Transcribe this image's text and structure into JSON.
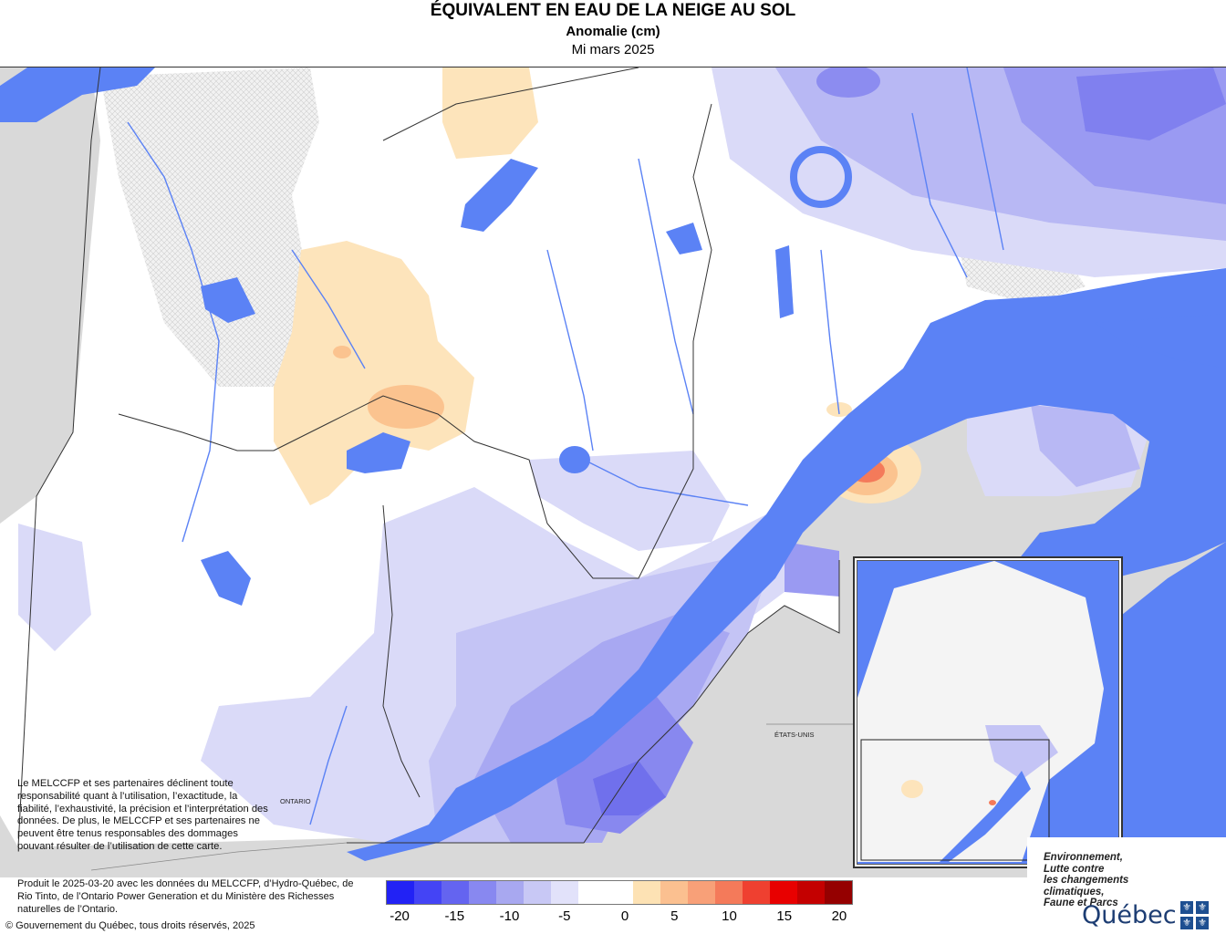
{
  "title": {
    "main": "ÉQUIVALENT EN EAU DE LA NEIGE AU SOL",
    "sub": "Anomalie (cm)",
    "period": "Mi mars 2025"
  },
  "labels": {
    "ontario": "ONTARIO",
    "etats_unis": "ÉTATS-UNIS"
  },
  "disclaimer": "Le MELCCFP et ses partenaires déclinent toute responsabilité quant à l’utilisation, l’exactitude, la fiabilité, l’exhaustivité, la précision et l’interprétation des données. De plus, le MELCCFP et ses partenaires ne peuvent être tenus responsables des dommages pouvant résulter de l’utilisation de cette carte.",
  "credits": "Produit le 2025-03-20 avec les données du MELCCFP, d’Hydro-Québec, de Rio Tinto, de l’Ontario Power Generation et du Ministère des Richesses naturelles de l’Ontario.",
  "copyright": "© Gouvernement du Québec, tous droits réservés, 2025",
  "legend": {
    "colors": [
      "#2222f5",
      "#4444f5",
      "#6464f0",
      "#8888f0",
      "#a8a8f0",
      "#c8c8f5",
      "#e2e2fa",
      "#ffffff",
      "#ffffff",
      "#fde2b4",
      "#fbc090",
      "#f8a078",
      "#f47a5a",
      "#ef4030",
      "#e80000",
      "#c40000",
      "#950000"
    ],
    "labels": [
      "-20",
      "-15",
      "-10",
      "-5",
      "0",
      "5",
      "10",
      "15",
      "20"
    ]
  },
  "logo": {
    "ministry": [
      "Environnement,",
      "Lutte contre",
      "les changements",
      "climatiques,",
      "Faune et Parcs"
    ],
    "wordmark": "Québec"
  },
  "colors": {
    "water": "#5b82f5",
    "land_outside": "#d8d8d8",
    "anomaly_neutral": "#ffffff"
  }
}
